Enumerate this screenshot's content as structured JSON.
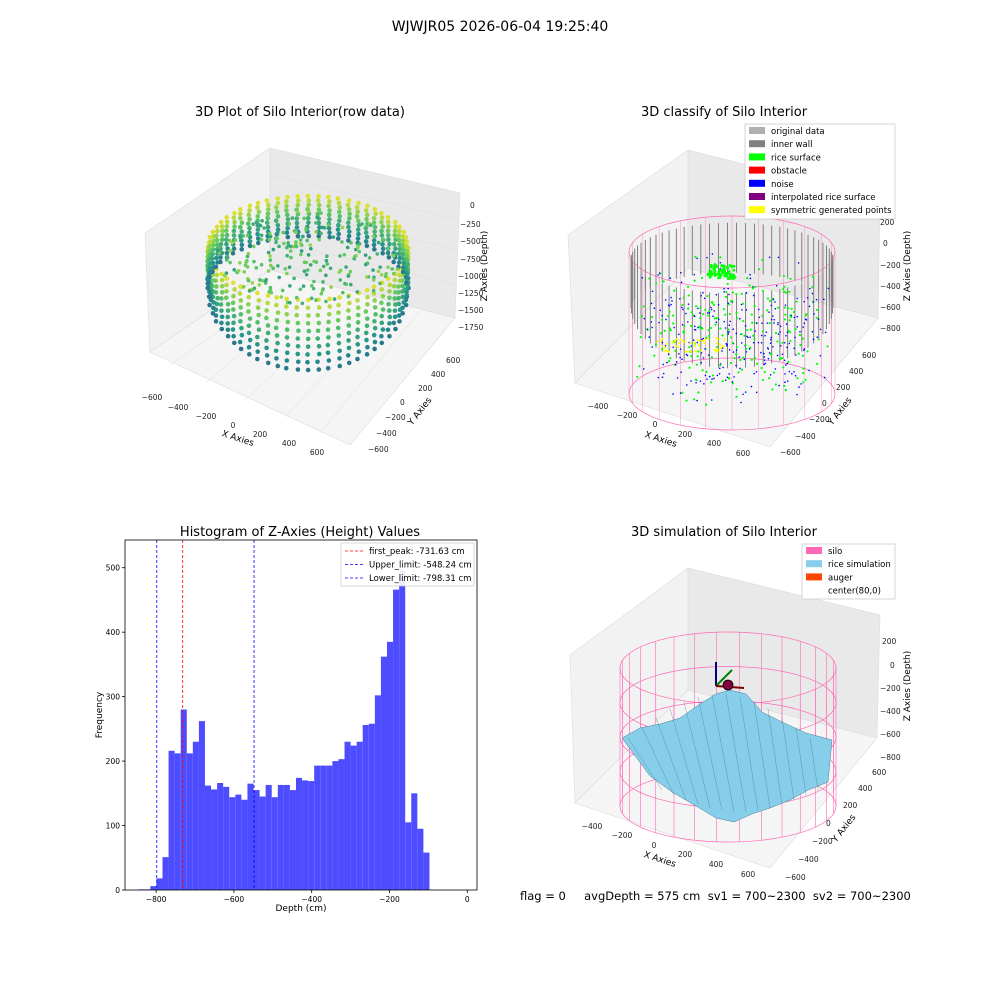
{
  "suptitle": "WJWJR05 2026-06-04 19:25:40",
  "footer_text": "flag = 0     avgDepth = 575 cm  sv1 = 700~2300  sv2 = 700~2300",
  "colors": {
    "hist_bar": "#4d4dff",
    "first_peak_line": "#ff0000",
    "limit_lines": "#0000ff",
    "silo_wire": "#ff69b4",
    "rice_surface": "#87ceeb",
    "inner_wall": "#808080",
    "rice_points": "#00ff00",
    "noise_points": "#0000ff",
    "symmetric_points": "#ffff00"
  },
  "chart_data": [
    {
      "type": "scatter3d",
      "title": "3D Plot of Silo Interior(row data)",
      "xlabel": "X Axies",
      "ylabel": "Y Axies",
      "zlabel": "Z Axies (Depth)",
      "xticks": [
        "−600",
        "−400",
        "−200",
        "0",
        "200",
        "400",
        "600"
      ],
      "yticks": [
        "−600",
        "−400",
        "−200",
        "0",
        "200",
        "400",
        "600"
      ],
      "zticks": [
        "0",
        "−250",
        "−500",
        "−750",
        "−1000",
        "−1250",
        "−1500",
        "−1750"
      ],
      "colormap": "viridis"
    },
    {
      "type": "scatter3d",
      "title": "3D classify of Silo Interior",
      "xlabel": "X Axies",
      "ylabel": "Y Axies",
      "zlabel": "Z Axies (Depth)",
      "xticks": [
        "−400",
        "−200",
        "0",
        "200",
        "400",
        "600"
      ],
      "yticks": [
        "−600",
        "−400",
        "−200",
        "0",
        "200",
        "400",
        "600"
      ],
      "zticks": [
        "200",
        "0",
        "−200",
        "−400",
        "−600",
        "−800"
      ],
      "legend": [
        {
          "label": "original data",
          "color": "#b0b0b0"
        },
        {
          "label": "inner wall",
          "color": "#808080"
        },
        {
          "label": "rice surface",
          "color": "#00ff00"
        },
        {
          "label": "obstacle",
          "color": "#ff0000"
        },
        {
          "label": "noise",
          "color": "#0000ff"
        },
        {
          "label": "interpolated rice surface",
          "color": "#800080"
        },
        {
          "label": "symmetric generated points",
          "color": "#ffff00"
        }
      ],
      "legend_position": "top-right"
    },
    {
      "type": "bar",
      "title": "Histogram of Z-Axies (Height) Values",
      "xlabel": "Depth (cm)",
      "ylabel": "Frequency",
      "xlim": [
        -880,
        25
      ],
      "ylim": [
        0,
        543
      ],
      "xticks": [
        -800,
        -600,
        -400,
        -200,
        0
      ],
      "xtick_labels": [
        "−800",
        "−600",
        "−400",
        "−200",
        "0"
      ],
      "yticks": [
        0,
        100,
        200,
        300,
        400,
        500
      ],
      "bin_width": 15.6,
      "bin_start": -846,
      "values": [
        1,
        1,
        6,
        18,
        51,
        216,
        212,
        280,
        212,
        230,
        262,
        162,
        156,
        166,
        160,
        144,
        148,
        140,
        165,
        155,
        145,
        163,
        144,
        163,
        163,
        155,
        174,
        170,
        169,
        193,
        193,
        193,
        200,
        203,
        230,
        224,
        230,
        256,
        258,
        302,
        362,
        385,
        466,
        496,
        105,
        150,
        95,
        58
      ],
      "vlines": [
        {
          "x": -731.63,
          "label": "first_peak: -731.63 cm",
          "color": "#ff0000"
        },
        {
          "x": -548.24,
          "label": "Upper_limit: -548.24 cm",
          "color": "#0000ff"
        },
        {
          "x": -798.31,
          "label": "Lower_limit: -798.31 cm",
          "color": "#0000ff"
        }
      ],
      "legend_position": "top-right"
    },
    {
      "type": "surface3d",
      "title": "3D simulation of Silo Interior",
      "xlabel": "X Axies",
      "ylabel": "Y Axies",
      "zlabel": "Z Axies (Depth)",
      "xticks": [
        "−400",
        "−200",
        "0",
        "200",
        "400",
        "600"
      ],
      "yticks": [
        "−600",
        "−400",
        "−200",
        "0",
        "200",
        "400",
        "600"
      ],
      "zticks": [
        "200",
        "0",
        "−200",
        "−400",
        "−600",
        "−800"
      ],
      "legend": [
        {
          "label": "silo",
          "color": "#ff69b4"
        },
        {
          "label": "rice simulation",
          "color": "#87ceeb"
        },
        {
          "label": "auger",
          "color": "#ff4500"
        },
        {
          "label": "center(80,0)",
          "color": ""
        }
      ],
      "legend_position": "top-right"
    }
  ]
}
